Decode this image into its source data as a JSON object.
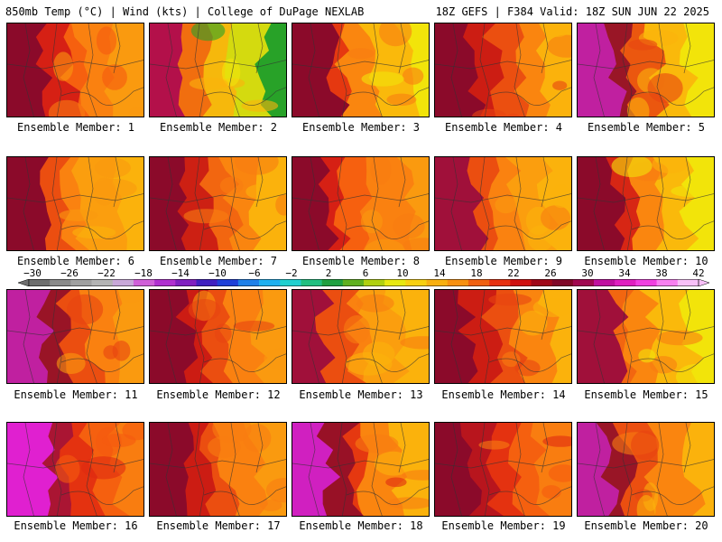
{
  "header": {
    "left": "850mb Temp (°C) | Wind (kts) | College of DuPage NEXLAB",
    "right": "18Z GEFS | F384 Valid: 18Z SUN JUN 22 2025"
  },
  "members": [
    {
      "label": "Ensemble Member: 1",
      "palette": [
        "#8b0a2a",
        "#d01515",
        "#f55a0f",
        "#f97d10",
        "#fa9a0f"
      ]
    },
    {
      "label": "Ensemble Member: 2",
      "palette": [
        "#b3104a",
        "#f06010",
        "#fbb20c",
        "#f2e40a",
        "#28a228"
      ]
    },
    {
      "label": "Ensemble Member: 3",
      "palette": [
        "#8b0a2a",
        "#e02a10",
        "#f97d10",
        "#fbb20c",
        "#f2e40a"
      ]
    },
    {
      "label": "Ensemble Member: 4",
      "palette": [
        "#8b0a2a",
        "#c71414",
        "#e84510",
        "#f97d10",
        "#fbb20c"
      ]
    },
    {
      "label": "Ensemble Member: 5",
      "palette": [
        "#c020a0",
        "#8b0a2a",
        "#e84510",
        "#fbb20c",
        "#f2e40a"
      ]
    },
    {
      "label": "Ensemble Member: 6",
      "palette": [
        "#8b0a2a",
        "#e84510",
        "#f97d10",
        "#fa9a0f",
        "#fbb20c"
      ]
    },
    {
      "label": "Ensemble Member: 7",
      "palette": [
        "#8b0a2a",
        "#c71414",
        "#f06010",
        "#f97d10",
        "#fbb20c"
      ]
    },
    {
      "label": "Ensemble Member: 8",
      "palette": [
        "#8b0a2a",
        "#d01515",
        "#f55a0f",
        "#f97d10",
        "#fa9a0f"
      ]
    },
    {
      "label": "Ensemble Member: 9",
      "palette": [
        "#a0103a",
        "#e84510",
        "#f97d10",
        "#fa9a0f",
        "#fbb20c"
      ]
    },
    {
      "label": "Ensemble Member: 10",
      "palette": [
        "#8b0a2a",
        "#d01515",
        "#f97d10",
        "#fbb20c",
        "#f2e40a"
      ]
    },
    {
      "label": "Ensemble Member: 11",
      "palette": [
        "#c020a0",
        "#8b0a2a",
        "#e84510",
        "#f97d10",
        "#fa9a0f"
      ]
    },
    {
      "label": "Ensemble Member: 12",
      "palette": [
        "#8b0a2a",
        "#c71414",
        "#e84510",
        "#f97d10",
        "#fa9a0f"
      ]
    },
    {
      "label": "Ensemble Member: 13",
      "palette": [
        "#a0103a",
        "#e84510",
        "#f97d10",
        "#fa9a0f",
        "#fbb20c"
      ]
    },
    {
      "label": "Ensemble Member: 14",
      "palette": [
        "#8b0a2a",
        "#c71414",
        "#e84510",
        "#f97d10",
        "#fbb20c"
      ]
    },
    {
      "label": "Ensemble Member: 15",
      "palette": [
        "#a0103a",
        "#f06010",
        "#f97d10",
        "#fbb20c",
        "#f2e40a"
      ]
    },
    {
      "label": "Ensemble Member: 16",
      "palette": [
        "#e020d0",
        "#a0103a",
        "#e02a10",
        "#f55a0f",
        "#f97d10"
      ]
    },
    {
      "label": "Ensemble Member: 17",
      "palette": [
        "#8b0a2a",
        "#c71414",
        "#e84510",
        "#f97d10",
        "#fa9a0f"
      ]
    },
    {
      "label": "Ensemble Member: 18",
      "palette": [
        "#d020c0",
        "#8b0a2a",
        "#e02a10",
        "#f97d10",
        "#fbb20c"
      ]
    },
    {
      "label": "Ensemble Member: 19",
      "palette": [
        "#8b0a2a",
        "#b01020",
        "#e02a10",
        "#f55a0f",
        "#f97d10"
      ]
    },
    {
      "label": "Ensemble Member: 20",
      "palette": [
        "#c020a0",
        "#8b0a2a",
        "#e84510",
        "#f97d10",
        "#fbb20c"
      ]
    }
  ],
  "colorbar": {
    "ticks": [
      "−30",
      "−26",
      "−22",
      "−18",
      "−14",
      "−10",
      "−6",
      "−2",
      "2",
      "6",
      "10",
      "14",
      "18",
      "22",
      "26",
      "30",
      "34",
      "38",
      "42"
    ],
    "colors": [
      "#6e6e6e",
      "#8a8a8a",
      "#a0a0a0",
      "#b4b4b4",
      "#c8a8d8",
      "#d060d8",
      "#b030d0",
      "#8020c0",
      "#4020c0",
      "#2040d8",
      "#2080e8",
      "#20b0f0",
      "#20d0d0",
      "#20c080",
      "#20a040",
      "#60b020",
      "#b0d010",
      "#e8e810",
      "#f8d010",
      "#f8b010",
      "#f89010",
      "#f06010",
      "#e83010",
      "#d01010",
      "#a00818",
      "#800828",
      "#a00850",
      "#c010a0",
      "#e020c0",
      "#f040e0",
      "#f880f0",
      "#f8c0f8"
    ]
  }
}
